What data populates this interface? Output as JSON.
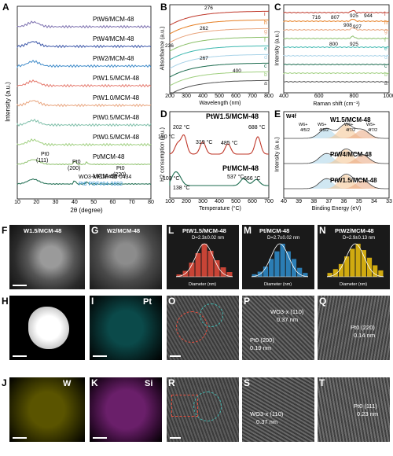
{
  "panels": {
    "A": {
      "label": "A",
      "xlabel": "2θ (degree)",
      "ylabel": "Intensity (a.u.)",
      "xticks": [
        "10",
        "20",
        "30",
        "40",
        "50",
        "60",
        "70",
        "80"
      ],
      "series": [
        "PtW6/MCM-48",
        "PtW4/MCM-48",
        "PtW2/MCM-48",
        "PtW1.5/MCM-48",
        "PtW1.0/MCM-48",
        "PtW0.5/MCM-48",
        "PtW0.5/MCM-48 ",
        "Pt/MCM-48",
        "MCM-48"
      ],
      "peaks": [
        "Pt0",
        "(111)",
        "Pt0",
        "(200)",
        "Pt0",
        "(220)"
      ],
      "ref1": "WO3-x PDF#53-0434",
      "ref2": "Pt0 PDF#04-0802",
      "colors": [
        "#7b6fae",
        "#3a55a8",
        "#3f8bc9",
        "#e57a6e",
        "#e9a57e",
        "#7fbfa9",
        "#9fcf7f",
        "#8cc06a",
        "#1b6b4e"
      ]
    },
    "B": {
      "label": "B",
      "xlabel": "Wavelength (nm)",
      "ylabel": "Absorbance (a.u.)",
      "xticks": [
        "200",
        "300",
        "400",
        "500",
        "600",
        "700",
        "800"
      ],
      "annotations": [
        "276",
        "262",
        "236",
        "267",
        "400"
      ],
      "curve_labels": [
        "i",
        "h",
        "g",
        "f",
        "e",
        "d",
        "c",
        "b",
        "a"
      ]
    },
    "C": {
      "label": "C",
      "xlabel": "Raman shift (cm⁻¹)",
      "ylabel": "Intensity (a.u.)",
      "xticks": [
        "400",
        "600",
        "800",
        "1000"
      ],
      "annotations": [
        "716",
        "807",
        "925",
        "944",
        "908",
        "927",
        "800",
        "925"
      ],
      "curve_labels": [
        "i",
        "h",
        "g",
        "f",
        "e",
        "d",
        "c",
        "b",
        "a"
      ]
    },
    "D": {
      "label": "D",
      "xlabel": "Temperature (°C)",
      "ylabel": "H2 consumption (a.u.)",
      "xticks": [
        "100",
        "200",
        "300",
        "400",
        "500",
        "600",
        "700"
      ],
      "title1": "PtW1.5/MCM-48",
      "title2": "Pt/MCM-48",
      "peaks1": [
        "150 °C",
        "202 °C",
        "319 °C",
        "485 °C",
        "688 °C"
      ],
      "peaks2": [
        "103 °C",
        "138 °C",
        "537 °C",
        "666 °C"
      ]
    },
    "E": {
      "label": "E",
      "xlabel": "Binding Energy (eV)",
      "ylabel": "Intensity (a.u.)",
      "xticks": [
        "40",
        "39",
        "38",
        "37",
        "36",
        "35",
        "34",
        "33"
      ],
      "corner": "W4f",
      "traces": [
        "W1.5/MCM-48",
        "PtW4/MCM-48",
        "PtW1.5/MCM-48"
      ],
      "states": [
        "W6+",
        "4f5/2",
        "W5+",
        "4f5/2",
        "W6+",
        "4f7/2",
        "W5+",
        "4f7/2"
      ]
    }
  },
  "micro": {
    "F": {
      "label": "F",
      "caption": "W1.5/MCM-48"
    },
    "G": {
      "label": "G",
      "caption": "W2/MCM-48"
    },
    "H": {
      "label": "H",
      "caption": ""
    },
    "I": {
      "label": "I",
      "caption": "Pt"
    },
    "J": {
      "label": "J",
      "caption": "W"
    },
    "K": {
      "label": "K",
      "caption": "Si"
    },
    "L": {
      "label": "L",
      "caption": "PtW1.5/MCM-48",
      "stat": "D=2.3±0.02 nm",
      "xlab": "Diameter (nm)",
      "ylab": "Frequency (%)"
    },
    "M": {
      "label": "M",
      "caption": "Pt/MCM-48",
      "stat": "D=2.7±0.02 nm",
      "xlab": "Diameter (nm)",
      "ylab": "Frequency (%)"
    },
    "N": {
      "label": "N",
      "caption": "PtW2/MCM-48",
      "stat": "D=2.9±0.13 nm",
      "xlab": "Diameter (nm)",
      "ylab": "Frequency (%)"
    },
    "O": {
      "label": "O",
      "caption": ""
    },
    "P": {
      "label": "P",
      "c1": "WO3-x (110)",
      "c2": "0.37 nm",
      "c3": "Pt0 (200)",
      "c4": "0.19 nm"
    },
    "Q": {
      "label": "Q",
      "c1": "Pt0 (220)",
      "c2": "0.14 nm"
    },
    "R": {
      "label": "R",
      "caption": ""
    },
    "S": {
      "label": "S",
      "c1": "WO3-x (110)",
      "c2": "0.37 nm"
    },
    "T": {
      "label": "T",
      "c1": "Pt0 (111)",
      "c2": "0.23 nm"
    }
  },
  "hist": {
    "L": [
      2,
      5,
      12,
      20,
      28,
      22,
      14,
      8,
      4
    ],
    "M": [
      2,
      4,
      8,
      14,
      20,
      26,
      20,
      14,
      7,
      3
    ],
    "N": [
      3,
      6,
      10,
      16,
      22,
      26,
      21,
      15,
      9,
      5
    ]
  }
}
